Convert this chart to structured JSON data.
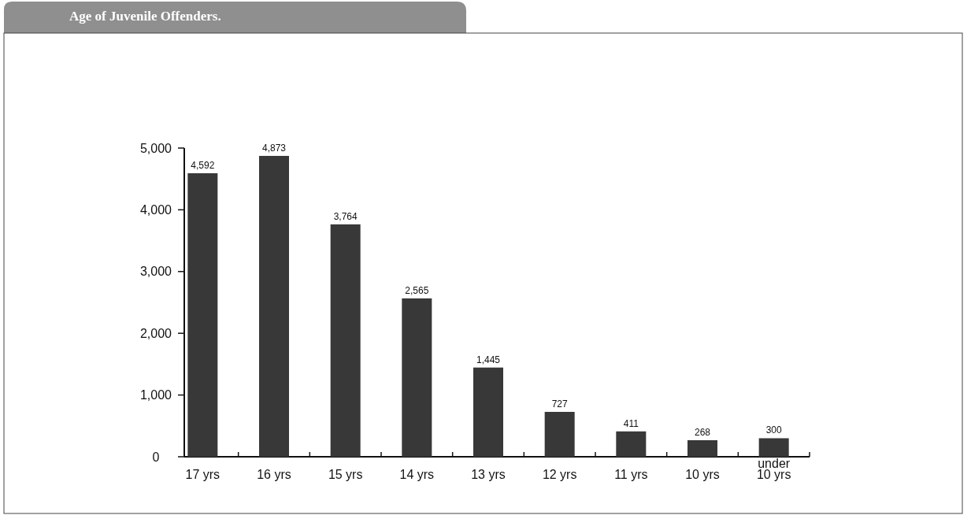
{
  "chart_data": {
    "type": "bar",
    "title": "Age of Juvenile Offenders.",
    "categories": [
      "17 yrs",
      "16 yrs",
      "15 yrs",
      "14 yrs",
      "13 yrs",
      "12 yrs",
      "11 yrs",
      "10 yrs",
      "under 10 yrs"
    ],
    "values": [
      4592,
      4873,
      3764,
      2565,
      1445,
      727,
      411,
      268,
      300
    ],
    "color": "#383838",
    "ylim": [
      0,
      5000
    ],
    "yticks": [
      0,
      {
        "value": 1000,
        "label": "1,000"
      },
      {
        "value": 2000,
        "label": "2,000"
      },
      {
        "value": 3000,
        "label": "3,000"
      },
      {
        "value": 4000,
        "label": "4,000"
      },
      {
        "value": 5000,
        "label": "5,000"
      }
    ],
    "value_labels": [
      "4,592",
      "4,873",
      "3,764",
      "2,565",
      "1,445",
      "727",
      "411",
      "268",
      "300"
    ]
  }
}
